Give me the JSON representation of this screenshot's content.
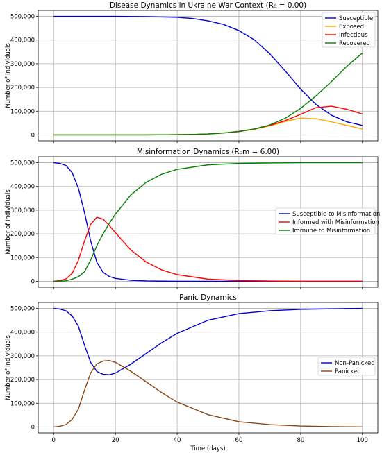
{
  "chart_data": [
    {
      "type": "line",
      "title": "Disease Dynamics in Ukraine War Context (R₀ = 0.00)",
      "xlabel": "",
      "ylabel": "Number of Individuals",
      "xlim": [
        -5,
        105
      ],
      "ylim": [
        -25000,
        525000
      ],
      "xticks": [
        0,
        20,
        40,
        60,
        80,
        100
      ],
      "yticks": [
        0,
        100000,
        200000,
        300000,
        400000,
        500000
      ],
      "ytick_labels": [
        "0",
        "100,000",
        "200,000",
        "300,000",
        "400,000",
        "500,000"
      ],
      "legend_loc": "upper-right",
      "grid": true,
      "x": [
        0,
        10,
        20,
        30,
        40,
        45,
        50,
        55,
        60,
        65,
        70,
        75,
        80,
        85,
        90,
        95,
        100
      ],
      "series": [
        {
          "name": "Susceptible",
          "color": "#0000cc",
          "values": [
            500000,
            500000,
            499800,
            499000,
            496000,
            491000,
            481000,
            466000,
            440000,
            401000,
            342000,
            270000,
            193000,
            128000,
            83000,
            55000,
            40000
          ]
        },
        {
          "name": "Exposed",
          "color": "#ffa500",
          "values": [
            0,
            0,
            0,
            200,
            1000,
            2000,
            4000,
            8000,
            14000,
            24000,
            38000,
            56000,
            71000,
            68000,
            55000,
            40000,
            25000
          ]
        },
        {
          "name": "Infectious",
          "color": "#ff0000",
          "values": [
            0,
            0,
            0,
            200,
            1000,
            2000,
            4000,
            8000,
            15000,
            25000,
            40000,
            60000,
            87000,
            115000,
            121000,
            108000,
            88000
          ]
        },
        {
          "name": "Recovered",
          "color": "#008000",
          "values": [
            0,
            0,
            0,
            200,
            1000,
            2000,
            4000,
            8000,
            14000,
            25000,
            42000,
            70000,
            112000,
            165000,
            225000,
            290000,
            345000
          ]
        }
      ]
    },
    {
      "type": "line",
      "title": "Misinformation Dynamics (R₀m = 6.00)",
      "xlabel": "",
      "ylabel": "Number of Individuals",
      "xlim": [
        -5,
        105
      ],
      "ylim": [
        -25000,
        525000
      ],
      "xticks": [
        0,
        20,
        40,
        60,
        80,
        100
      ],
      "yticks": [
        0,
        100000,
        200000,
        300000,
        400000,
        500000
      ],
      "ytick_labels": [
        "0",
        "100,000",
        "200,000",
        "300,000",
        "400,000",
        "500,000"
      ],
      "legend_loc": "center-right",
      "grid": true,
      "x": [
        0,
        2,
        4,
        6,
        8,
        10,
        12,
        14,
        16,
        18,
        20,
        25,
        30,
        35,
        40,
        50,
        60,
        70,
        80,
        90,
        100
      ],
      "series": [
        {
          "name": "Susceptible to Misinformation",
          "color": "#0000cc",
          "values": [
            500000,
            497000,
            488000,
            458000,
            393000,
            290000,
            170000,
            80000,
            38000,
            20000,
            12000,
            4000,
            1500,
            600,
            200,
            0,
            0,
            0,
            0,
            0,
            0
          ]
        },
        {
          "name": "Informed with Misinformation",
          "color": "#ff0000",
          "values": [
            0,
            2500,
            10000,
            33000,
            88000,
            170000,
            240000,
            270000,
            262000,
            236000,
            205000,
            132000,
            81000,
            48000,
            28000,
            9000,
            3000,
            1000,
            0,
            0,
            0
          ]
        },
        {
          "name": "Immune to Misinformation",
          "color": "#008000",
          "values": [
            0,
            500,
            2000,
            9000,
            19000,
            40000,
            90000,
            150000,
            200000,
            244000,
            283000,
            364000,
            417500,
            451400,
            471800,
            491000,
            497000,
            499000,
            500000,
            500000,
            500000
          ]
        }
      ]
    },
    {
      "type": "line",
      "title": "Panic Dynamics",
      "xlabel": "Time (days)",
      "ylabel": "Number of Individuals",
      "xlim": [
        -5,
        105
      ],
      "ylim": [
        -25000,
        525000
      ],
      "xticks": [
        0,
        20,
        40,
        60,
        80,
        100
      ],
      "xtick_labels": [
        "0",
        "20",
        "40",
        "60",
        "80",
        "100"
      ],
      "yticks": [
        0,
        100000,
        200000,
        300000,
        400000,
        500000
      ],
      "ytick_labels": [
        "0",
        "100,000",
        "200,000",
        "300,000",
        "400,000",
        "500,000"
      ],
      "legend_loc": "center-right",
      "grid": true,
      "x": [
        0,
        2,
        4,
        6,
        8,
        10,
        12,
        14,
        16,
        18,
        20,
        25,
        30,
        35,
        40,
        50,
        60,
        70,
        80,
        90,
        100
      ],
      "series": [
        {
          "name": "Non-Panicked",
          "color": "#0000cc",
          "values": [
            500000,
            497000,
            490000,
            468000,
            425000,
            345000,
            272000,
            234000,
            222000,
            220000,
            227000,
            265000,
            310000,
            355000,
            395000,
            450000,
            478000,
            490000,
            496000,
            498000,
            500000
          ]
        },
        {
          "name": "Panicked",
          "color": "#8b4513",
          "values": [
            0,
            3000,
            10000,
            32000,
            75000,
            155000,
            228000,
            266000,
            278000,
            280000,
            273000,
            235000,
            190000,
            145000,
            105000,
            52000,
            22000,
            10000,
            4000,
            1500,
            500
          ]
        }
      ]
    }
  ]
}
